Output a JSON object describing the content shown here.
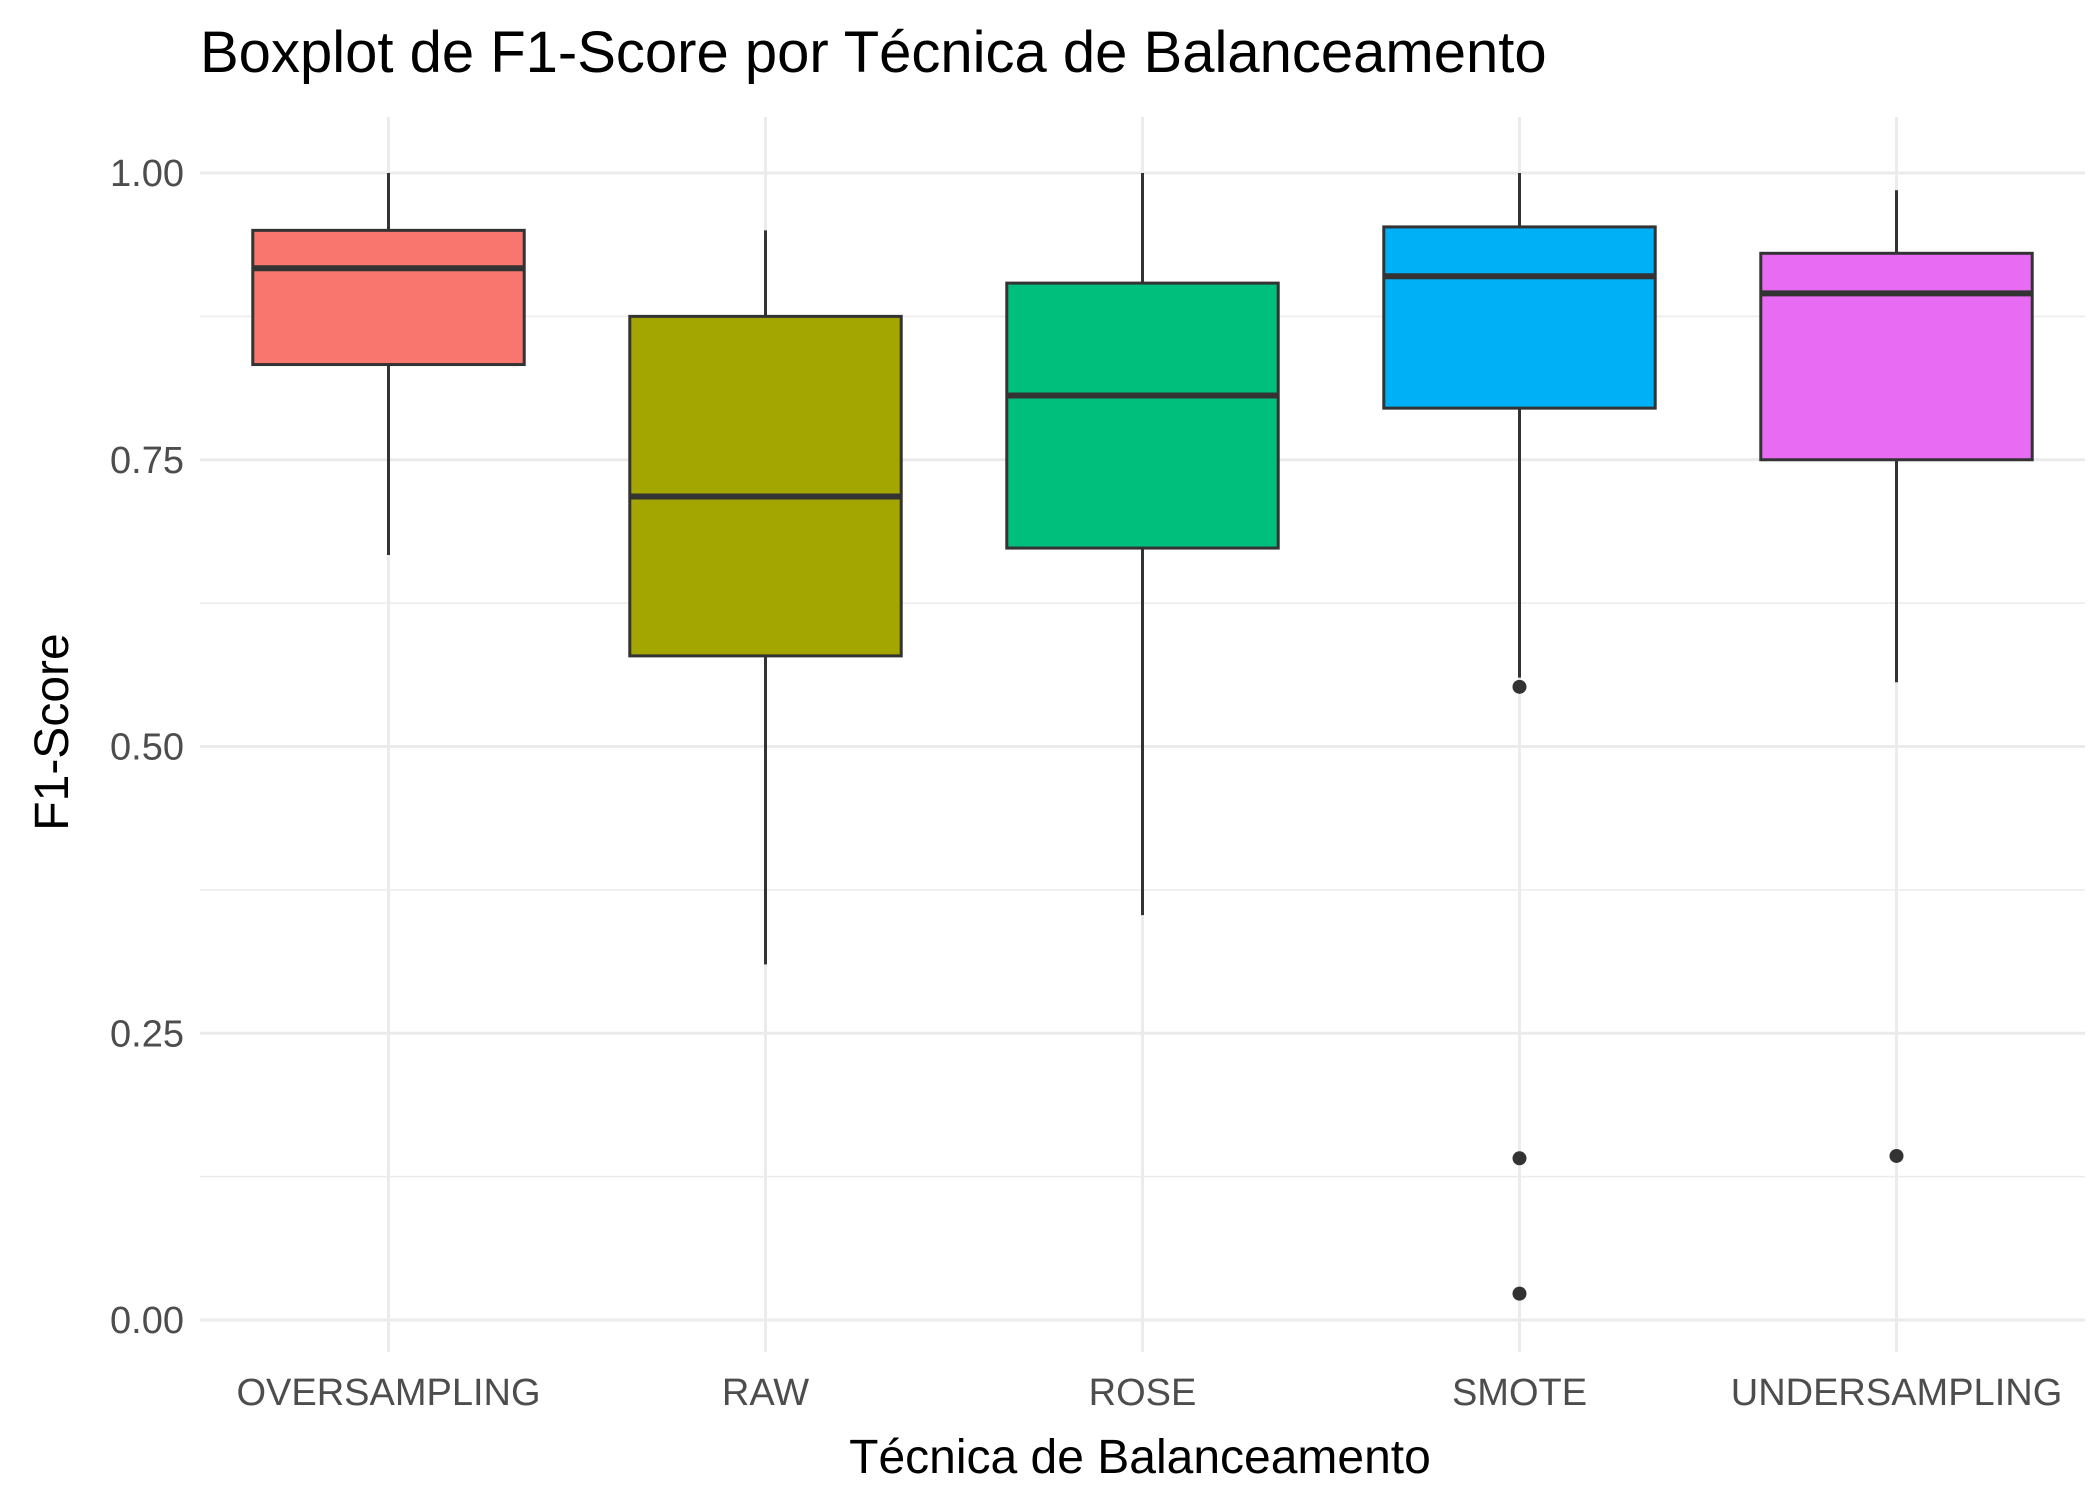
{
  "chart_data": {
    "type": "boxplot",
    "title": "Boxplot de F1-Score por Técnica de Balanceamento",
    "xlabel": "Técnica de Balanceamento",
    "ylabel": "F1-Score",
    "ylim": [
      -0.03,
      1.045
    ],
    "y_ticks": [
      "0.00",
      "0.25",
      "0.50",
      "0.75",
      "1.00"
    ],
    "grid": true,
    "legend": "none",
    "categories": [
      "OVERSAMPLING",
      "RAW",
      "ROSE",
      "SMOTE",
      "UNDERSAMPLING"
    ],
    "boxes": [
      {
        "category": "OVERSAMPLING",
        "color": "#F8766D",
        "whisker_low": 0.667,
        "q1": 0.833,
        "median": 0.917,
        "q3": 0.95,
        "whisker_high": 1.0,
        "outliers": []
      },
      {
        "category": "RAW",
        "color": "#A3A500",
        "whisker_low": 0.31,
        "q1": 0.579,
        "median": 0.718,
        "q3": 0.875,
        "whisker_high": 0.95,
        "outliers": []
      },
      {
        "category": "ROSE",
        "color": "#00BF7D",
        "whisker_low": 0.353,
        "q1": 0.673,
        "median": 0.806,
        "q3": 0.904,
        "whisker_high": 1.0,
        "outliers": []
      },
      {
        "category": "SMOTE",
        "color": "#00B0F6",
        "whisker_low": 0.56,
        "q1": 0.795,
        "median": 0.91,
        "q3": 0.953,
        "whisker_high": 1.0,
        "outliers": [
          0.552,
          0.141,
          0.023
        ]
      },
      {
        "category": "UNDERSAMPLING",
        "color": "#E76BF3",
        "whisker_low": 0.556,
        "q1": 0.75,
        "median": 0.895,
        "q3": 0.93,
        "whisker_high": 0.985,
        "outliers": [
          0.143
        ]
      }
    ]
  }
}
